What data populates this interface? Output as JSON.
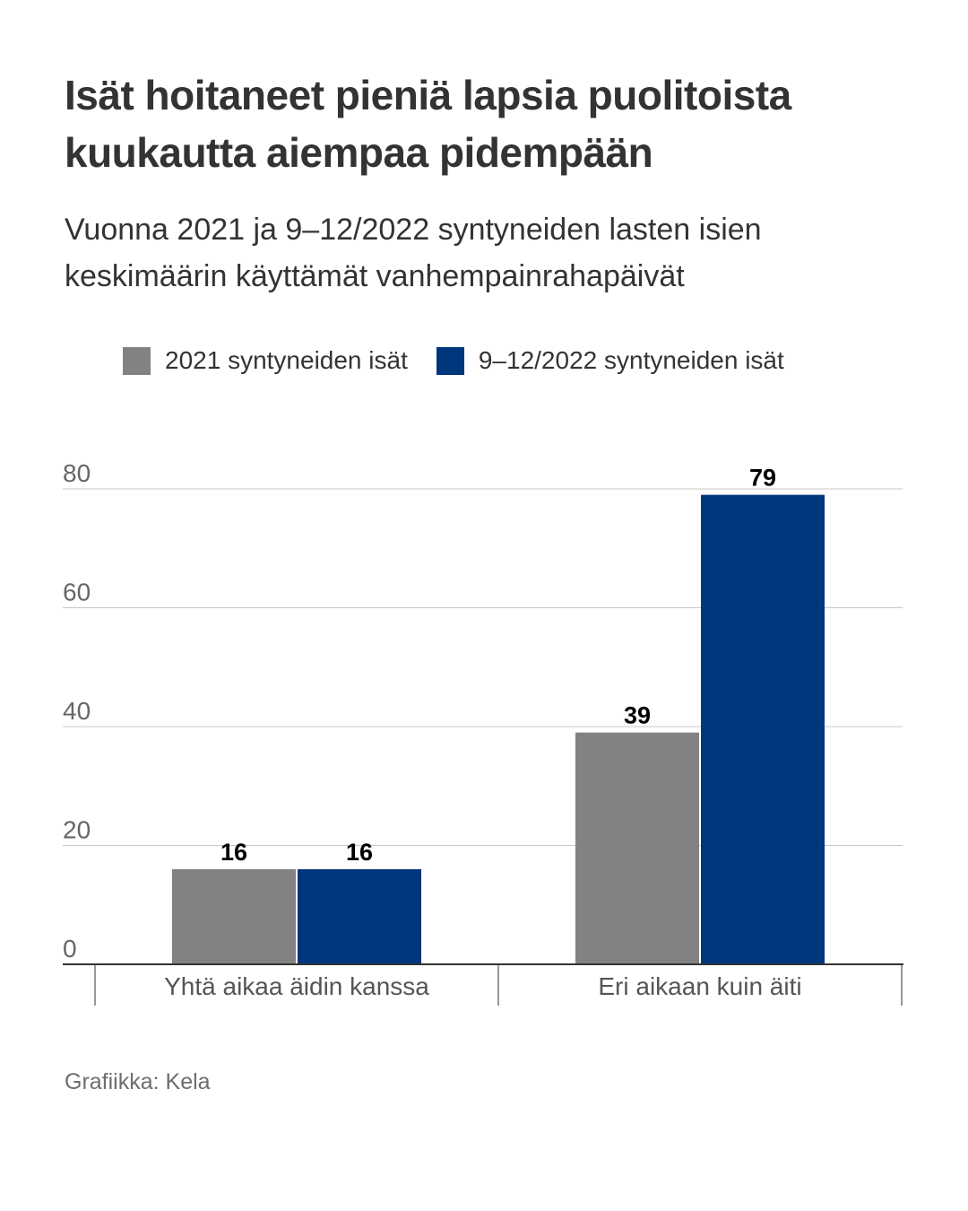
{
  "title": "Isät hoitaneet pieniä lapsia puolitoista kuukautta aiempaa pidempään",
  "subtitle": "Vuonna 2021 ja 9–12/2022 syntyneiden lasten isien keskimäärin käyttämät vanhempainrahapäivät",
  "credit": "Grafiikka: Kela",
  "chart_data": {
    "type": "bar",
    "title": "Isät hoitaneet pieniä lapsia puolitoista kuukautta aiempaa pidempään",
    "subtitle": "Vuonna 2021 ja 9–12/2022 syntyneiden lasten isien keskimäärin käyttämät vanhempainrahapäivät",
    "xlabel": "",
    "ylabel": "",
    "categories": [
      "Yhtä aikaa äidin kanssa",
      "Eri aikaan kuin äiti"
    ],
    "series": [
      {
        "name": "2021 syntyneiden isät",
        "color": "#828282",
        "values": [
          16,
          39
        ]
      },
      {
        "name": "9–12/2022 syntyneiden isät",
        "color": "#00367c",
        "values": [
          16,
          79
        ]
      }
    ],
    "ylim": [
      0,
      80
    ],
    "yticks": [
      0,
      20,
      40,
      60,
      80
    ],
    "grid": true,
    "legend": "top",
    "data_labels": true
  }
}
